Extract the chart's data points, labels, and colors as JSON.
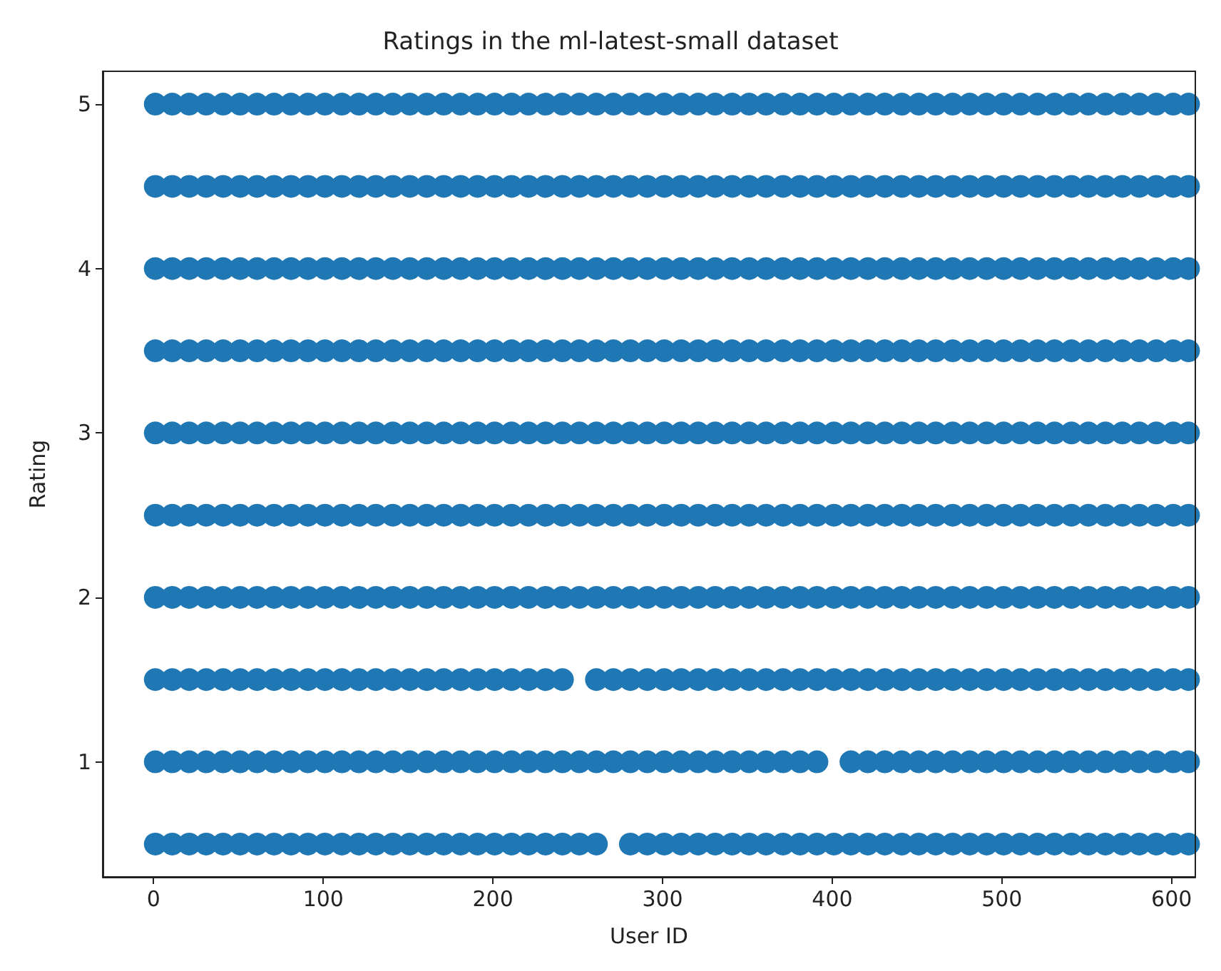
{
  "chart_data": {
    "type": "scatter",
    "title": "Ratings in the ml-latest-small dataset",
    "xlabel": "User ID",
    "ylabel": "Rating",
    "marker": "circle",
    "grid": false,
    "xlim": [
      -30,
      614
    ],
    "xticks": [
      0,
      100,
      200,
      300,
      400,
      500,
      600
    ],
    "ylim": [
      0.3,
      5.2
    ],
    "yticks": [
      1,
      2,
      3,
      4,
      5
    ],
    "x": [
      1,
      11,
      21,
      31,
      41,
      51,
      61,
      71,
      81,
      91,
      101,
      111,
      121,
      131,
      141,
      151,
      161,
      171,
      181,
      191,
      201,
      211,
      221,
      231,
      241,
      251,
      261,
      271,
      281,
      291,
      301,
      311,
      321,
      331,
      341,
      351,
      361,
      371,
      381,
      391,
      401,
      411,
      421,
      431,
      441,
      451,
      461,
      471,
      481,
      491,
      501,
      511,
      521,
      531,
      541,
      551,
      561,
      571,
      581,
      591,
      601,
      610
    ],
    "series": [
      {
        "color": "#1f77b4",
        "values": [
          5,
          5,
          5,
          5,
          5,
          5,
          5,
          5,
          5,
          5,
          5,
          5,
          5,
          5,
          5,
          5,
          5,
          5,
          5,
          5,
          5,
          5,
          5,
          5,
          5,
          5,
          5,
          5,
          5,
          5,
          5,
          5,
          5,
          5,
          5,
          5,
          5,
          5,
          5,
          5,
          5,
          5,
          5,
          5,
          5,
          5,
          5,
          5,
          5,
          5,
          5,
          5,
          5,
          5,
          5,
          5,
          5,
          5,
          5,
          5,
          5,
          5
        ]
      },
      {
        "color": "#1f77b4",
        "values": [
          4.5,
          4.5,
          4.5,
          4.5,
          4.5,
          4.5,
          4.5,
          4.5,
          4.5,
          4.5,
          4.5,
          4.5,
          4.5,
          4.5,
          4.5,
          4.5,
          4.5,
          4.5,
          4.5,
          4.5,
          4.5,
          4.5,
          4.5,
          4.5,
          4.5,
          4.5,
          4.5,
          4.5,
          4.5,
          4.5,
          4.5,
          4.5,
          4.5,
          4.5,
          4.5,
          4.5,
          4.5,
          4.5,
          4.5,
          4.5,
          4.5,
          4.5,
          4.5,
          4.5,
          4.5,
          4.5,
          4.5,
          4.5,
          4.5,
          4.5,
          4.5,
          4.5,
          4.5,
          4.5,
          4.5,
          4.5,
          4.5,
          4.5,
          4.5,
          4.5,
          4.5,
          4.5
        ]
      },
      {
        "color": "#1f77b4",
        "values": [
          4,
          4,
          4,
          4,
          4,
          4,
          4,
          4,
          4,
          4,
          4,
          4,
          4,
          4,
          4,
          4,
          4,
          4,
          4,
          4,
          4,
          4,
          4,
          4,
          4,
          4,
          4,
          4,
          4,
          4,
          4,
          4,
          4,
          4,
          4,
          4,
          4,
          4,
          4,
          4,
          4,
          4,
          4,
          4,
          4,
          4,
          4,
          4,
          4,
          4,
          4,
          4,
          4,
          4,
          4,
          4,
          4,
          4,
          4,
          4,
          4,
          4
        ]
      },
      {
        "color": "#1f77b4",
        "values": [
          3.5,
          3.5,
          3.5,
          3.5,
          3.5,
          3.5,
          3.5,
          3.5,
          3.5,
          3.5,
          3.5,
          3.5,
          3.5,
          3.5,
          3.5,
          3.5,
          3.5,
          3.5,
          3.5,
          3.5,
          3.5,
          3.5,
          3.5,
          3.5,
          3.5,
          3.5,
          3.5,
          3.5,
          3.5,
          3.5,
          3.5,
          3.5,
          3.5,
          3.5,
          3.5,
          3.5,
          3.5,
          3.5,
          3.5,
          3.5,
          3.5,
          3.5,
          3.5,
          3.5,
          3.5,
          3.5,
          3.5,
          3.5,
          3.5,
          3.5,
          3.5,
          3.5,
          3.5,
          3.5,
          3.5,
          3.5,
          3.5,
          3.5,
          3.5,
          3.5,
          3.5,
          3.5
        ]
      },
      {
        "color": "#1f77b4",
        "values": [
          3,
          3,
          3,
          3,
          3,
          3,
          3,
          3,
          3,
          3,
          3,
          3,
          3,
          3,
          3,
          3,
          3,
          3,
          3,
          3,
          3,
          3,
          3,
          3,
          3,
          3,
          3,
          3,
          3,
          3,
          3,
          3,
          3,
          3,
          3,
          3,
          3,
          3,
          3,
          3,
          3,
          3,
          3,
          3,
          3,
          3,
          3,
          3,
          3,
          3,
          3,
          3,
          3,
          3,
          3,
          3,
          3,
          3,
          3,
          3,
          3,
          3
        ]
      },
      {
        "color": "#1f77b4",
        "values": [
          2.5,
          2.5,
          2.5,
          2.5,
          2.5,
          2.5,
          2.5,
          2.5,
          2.5,
          2.5,
          2.5,
          2.5,
          2.5,
          2.5,
          2.5,
          2.5,
          2.5,
          2.5,
          2.5,
          2.5,
          2.5,
          2.5,
          2.5,
          2.5,
          2.5,
          2.5,
          2.5,
          2.5,
          2.5,
          2.5,
          2.5,
          2.5,
          2.5,
          2.5,
          2.5,
          2.5,
          2.5,
          2.5,
          2.5,
          2.5,
          2.5,
          2.5,
          2.5,
          2.5,
          2.5,
          2.5,
          2.5,
          2.5,
          2.5,
          2.5,
          2.5,
          2.5,
          2.5,
          2.5,
          2.5,
          2.5,
          2.5,
          2.5,
          2.5,
          2.5,
          2.5,
          2.5
        ]
      },
      {
        "color": "#1f77b4",
        "values": [
          2,
          2,
          2,
          2,
          2,
          2,
          2,
          2,
          2,
          2,
          2,
          2,
          2,
          2,
          2,
          2,
          2,
          2,
          2,
          2,
          2,
          2,
          2,
          2,
          2,
          2,
          2,
          2,
          2,
          2,
          2,
          2,
          2,
          2,
          2,
          2,
          2,
          2,
          2,
          2,
          2,
          2,
          2,
          2,
          2,
          2,
          2,
          2,
          2,
          2,
          2,
          2,
          2,
          2,
          2,
          2,
          2,
          2,
          2,
          2,
          2,
          2
        ]
      },
      {
        "color": "#1f77b4",
        "values": [
          1.5,
          1.5,
          1.5,
          1.5,
          1.5,
          1.5,
          1.5,
          1.5,
          1.5,
          1.5,
          1.5,
          1.5,
          1.5,
          1.5,
          1.5,
          1.5,
          1.5,
          1.5,
          1.5,
          1.5,
          1.5,
          1.5,
          1.5,
          1.5,
          1.5,
          null,
          1.5,
          1.5,
          1.5,
          1.5,
          1.5,
          1.5,
          1.5,
          1.5,
          1.5,
          1.5,
          1.5,
          1.5,
          1.5,
          1.5,
          1.5,
          1.5,
          1.5,
          1.5,
          1.5,
          1.5,
          1.5,
          1.5,
          1.5,
          1.5,
          1.5,
          1.5,
          1.5,
          1.5,
          1.5,
          1.5,
          1.5,
          1.5,
          1.5,
          1.5,
          1.5,
          1.5
        ]
      },
      {
        "color": "#1f77b4",
        "values": [
          1,
          1,
          1,
          1,
          1,
          1,
          1,
          1,
          1,
          1,
          1,
          1,
          1,
          1,
          1,
          1,
          1,
          1,
          1,
          1,
          1,
          1,
          1,
          1,
          1,
          1,
          1,
          1,
          1,
          1,
          1,
          1,
          1,
          1,
          1,
          1,
          1,
          1,
          1,
          1,
          null,
          1,
          1,
          1,
          1,
          1,
          1,
          1,
          1,
          1,
          1,
          1,
          1,
          1,
          1,
          1,
          1,
          1,
          1,
          1,
          1,
          1
        ]
      },
      {
        "color": "#1f77b4",
        "values": [
          0.5,
          0.5,
          0.5,
          0.5,
          0.5,
          0.5,
          0.5,
          0.5,
          0.5,
          0.5,
          0.5,
          0.5,
          0.5,
          0.5,
          0.5,
          0.5,
          0.5,
          0.5,
          0.5,
          0.5,
          0.5,
          0.5,
          0.5,
          0.5,
          0.5,
          0.5,
          0.5,
          null,
          0.5,
          0.5,
          0.5,
          0.5,
          0.5,
          0.5,
          0.5,
          0.5,
          0.5,
          0.5,
          0.5,
          0.5,
          0.5,
          0.5,
          0.5,
          0.5,
          0.5,
          0.5,
          0.5,
          0.5,
          0.5,
          0.5,
          0.5,
          0.5,
          0.5,
          0.5,
          0.5,
          0.5,
          0.5,
          0.5,
          0.5,
          0.5,
          0.5,
          0.5
        ]
      }
    ]
  }
}
